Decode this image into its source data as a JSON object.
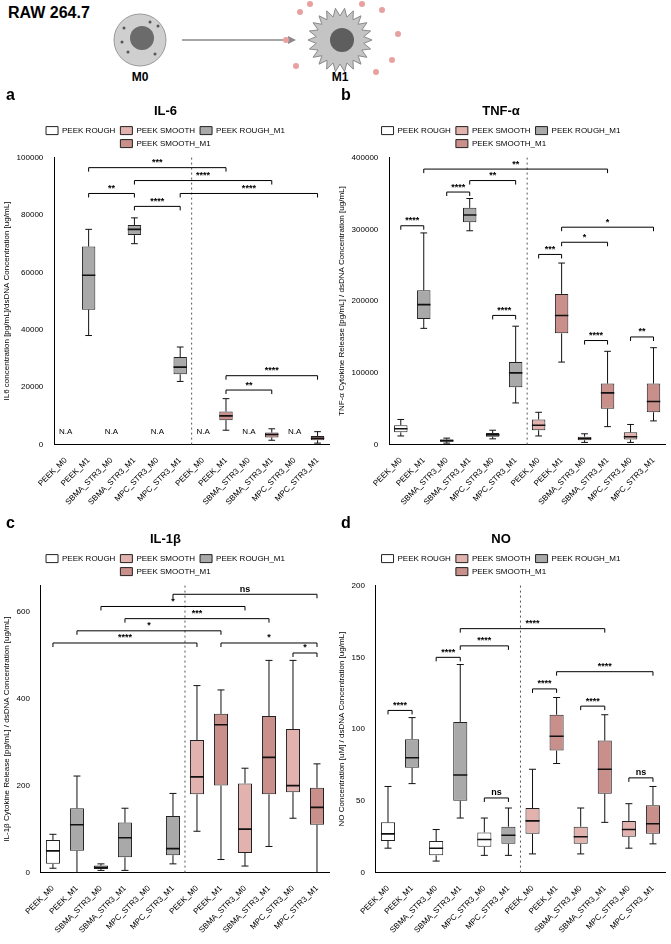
{
  "header": {
    "title": "RAW 264.7",
    "stages": [
      "M0",
      "M1"
    ]
  },
  "chart_data": [
    {
      "type": "box",
      "panel_label": "a",
      "title": "IL-6",
      "y_label": "IL6 concentration [pg/mL]/dsDNA Concentration [ug/mL]",
      "categories": [
        "PEEK_M0",
        "PEEK_M1",
        "SBMA_STR3_M0",
        "SBMA_STR3_M1",
        "MPC_STR3_M0",
        "MPC_STR3_M1",
        "PEEK_M0",
        "PEEK_M1",
        "SBMA_STR3_M0",
        "SBMA_STR3_M1",
        "MPC_STR3_M0",
        "MPC_STR3_M1"
      ],
      "ylim": [
        0,
        100000
      ],
      "yticks": [
        0,
        20000,
        40000,
        60000,
        80000,
        100000
      ],
      "grid": false,
      "legend": "top",
      "series": [
        {
          "name": "PEEK ROUGH",
          "color": "#ffffff",
          "values": [
            null,
            null,
            null,
            null,
            null,
            null,
            null,
            null,
            null,
            null,
            null,
            null
          ]
        },
        {
          "name": "PEEK SMOOTH",
          "color": "#e2b3ae",
          "values": [
            null,
            null,
            null,
            null,
            null,
            null,
            null,
            null,
            null,
            null,
            null,
            null
          ]
        },
        {
          "name": "PEEK ROUGH_M1",
          "color": "#a9a9a9",
          "values": [
            null,
            {
              "min": 38000,
              "q1": 47000,
              "median": 59000,
              "q3": 69000,
              "max": 75000
            },
            null,
            {
              "min": 70000,
              "q1": 73000,
              "median": 75000,
              "q3": 76500,
              "max": 79000
            },
            null,
            {
              "min": 22000,
              "q1": 24500,
              "median": 27000,
              "q3": 30500,
              "max": 34000
            },
            null,
            null,
            null,
            null,
            null,
            null
          ]
        },
        {
          "name": "PEEK SMOOTH_M1",
          "color": "#c98f8a",
          "values": [
            null,
            null,
            null,
            null,
            null,
            null,
            null,
            {
              "min": 5000,
              "q1": 8500,
              "median": 10000,
              "q3": 11500,
              "max": 16000
            },
            null,
            {
              "min": 1500,
              "q1": 2500,
              "median": 3500,
              "q3": 4200,
              "max": 5500
            },
            null,
            {
              "min": 500,
              "q1": 1500,
              "median": 2200,
              "q3": 3000,
              "max": 4500
            }
          ]
        }
      ],
      "annotations": [
        {
          "text": "N.A",
          "index": 0,
          "y": 3000
        },
        {
          "text": "N.A",
          "index": 2,
          "y": 3000
        },
        {
          "text": "N.A",
          "index": 4,
          "y": 3000
        },
        {
          "text": "N.A",
          "index": 6,
          "y": 3000
        },
        {
          "text": "N.A",
          "index": 8,
          "y": 3000
        },
        {
          "text": "N.A",
          "index": 10,
          "y": 3000
        }
      ],
      "brackets": [
        {
          "from": 1,
          "to": 7,
          "y": 96500,
          "label": "***"
        },
        {
          "from": 3,
          "to": 9,
          "y": 92000,
          "label": "****"
        },
        {
          "from": 1,
          "to": 3,
          "y": 87500,
          "label": "**"
        },
        {
          "from": 5,
          "to": 11,
          "y": 87500,
          "label": "****"
        },
        {
          "from": 3,
          "to": 5,
          "y": 83000,
          "label": "****"
        },
        {
          "from": 7,
          "to": 11,
          "y": 24000,
          "label": "****"
        },
        {
          "from": 7,
          "to": 9,
          "y": 19000,
          "label": "**"
        }
      ]
    },
    {
      "type": "box",
      "panel_label": "b",
      "title": "TNF-α",
      "y_label": "TNF-α Cytokine Release [pg/mL] / dsDNA Concentration [ug/mL]",
      "categories": [
        "PEEK_M0",
        "PEEK_M1",
        "SBMA_STR3_M0",
        "SBMA_STR3_M1",
        "MPC_STR3_M0",
        "MPC_STR3_M1",
        "PEEK_M0",
        "PEEK_M1",
        "SBMA_STR3_M0",
        "SBMA_STR3_M1",
        "MPC_STR3_M0",
        "MPC_STR3_M1"
      ],
      "ylim": [
        0,
        400000
      ],
      "yticks": [
        0,
        100000,
        200000,
        300000,
        400000
      ],
      "grid": false,
      "legend": "top",
      "series": [
        {
          "name": "PEEK ROUGH",
          "color": "#ffffff",
          "values": [
            {
              "min": 12000,
              "q1": 17000,
              "median": 22000,
              "q3": 27000,
              "max": 35000
            },
            null,
            {
              "min": 2000,
              "q1": 4000,
              "median": 5500,
              "q3": 7000,
              "max": 9000
            },
            null,
            {
              "min": 8000,
              "q1": 11000,
              "median": 13500,
              "q3": 16000,
              "max": 20000
            },
            null,
            null,
            null,
            null,
            null,
            null,
            null
          ]
        },
        {
          "name": "PEEK SMOOTH",
          "color": "#e2b3ae",
          "values": [
            null,
            null,
            null,
            null,
            null,
            null,
            {
              "min": 12000,
              "q1": 20000,
              "median": 27000,
              "q3": 35000,
              "max": 45000
            },
            null,
            {
              "min": 3000,
              "q1": 6000,
              "median": 8500,
              "q3": 11000,
              "max": 15000
            },
            null,
            {
              "min": 3000,
              "q1": 7000,
              "median": 11000,
              "q3": 17000,
              "max": 28000
            },
            null
          ]
        },
        {
          "name": "PEEK ROUGH_M1",
          "color": "#a9a9a9",
          "values": [
            null,
            {
              "min": 162000,
              "q1": 175000,
              "median": 195000,
              "q3": 215000,
              "max": 295000
            },
            null,
            {
              "min": 298000,
              "q1": 310000,
              "median": 320000,
              "q3": 330000,
              "max": 343000
            },
            null,
            {
              "min": 58000,
              "q1": 80000,
              "median": 100000,
              "q3": 115000,
              "max": 165000
            },
            null,
            null,
            null,
            null,
            null,
            null
          ]
        },
        {
          "name": "PEEK SMOOTH_M1",
          "color": "#c98f8a",
          "values": [
            null,
            null,
            null,
            null,
            null,
            null,
            null,
            {
              "min": 115000,
              "q1": 155000,
              "median": 180000,
              "q3": 210000,
              "max": 253000
            },
            null,
            {
              "min": 25000,
              "q1": 50000,
              "median": 72000,
              "q3": 85000,
              "max": 130000
            },
            null,
            {
              "min": 33000,
              "q1": 45000,
              "median": 60000,
              "q3": 85000,
              "max": 135000
            }
          ]
        }
      ],
      "brackets": [
        {
          "from": 1,
          "to": 9,
          "y": 384000,
          "label": "**"
        },
        {
          "from": 3,
          "to": 5,
          "y": 368000,
          "label": "**"
        },
        {
          "from": 2,
          "to": 3,
          "y": 352000,
          "label": "****"
        },
        {
          "from": 0,
          "to": 1,
          "y": 305000,
          "label": "****"
        },
        {
          "from": 7,
          "to": 11,
          "y": 303000,
          "label": "*"
        },
        {
          "from": 7,
          "to": 9,
          "y": 282000,
          "label": "*"
        },
        {
          "from": 6,
          "to": 7,
          "y": 265000,
          "label": "***"
        },
        {
          "from": 4,
          "to": 5,
          "y": 180000,
          "label": "****"
        },
        {
          "from": 8,
          "to": 9,
          "y": 145000,
          "label": "****"
        },
        {
          "from": 10,
          "to": 11,
          "y": 150000,
          "label": "**"
        }
      ]
    },
    {
      "type": "box",
      "panel_label": "c",
      "title": "IL-1β",
      "y_label": "IL-1β Cytokine Release [pg/mL] / dsDNA Concentration [ug/mL]",
      "categories": [
        "PEEK_M0",
        "PEEK_M1",
        "SBMA_STR3_M0",
        "SBMA_STR3_M1",
        "MPC_STR3_M0",
        "MPC_STR3_M1",
        "PEEK_M0",
        "PEEK_M1",
        "SBMA_STR3_M0",
        "SBMA_STR3_M1",
        "MPC_STR3_M0",
        "MPC_STR3_M1"
      ],
      "ylim": [
        0,
        660
      ],
      "yticks": [
        0,
        200,
        400,
        600
      ],
      "grid": false,
      "legend": "top",
      "series": [
        {
          "name": "PEEK ROUGH",
          "color": "#ffffff",
          "values": [
            {
              "min": 10,
              "q1": 20,
              "median": 50,
              "q3": 75,
              "max": 88
            },
            null,
            {
              "min": 5,
              "q1": 8,
              "median": 12,
              "q3": 16,
              "max": 20
            },
            null,
            null,
            null,
            null,
            null,
            null,
            null,
            null,
            null
          ]
        },
        {
          "name": "PEEK SMOOTH",
          "color": "#e2b3ae",
          "values": [
            null,
            null,
            null,
            null,
            null,
            null,
            {
              "min": 95,
              "q1": 180,
              "median": 220,
              "q3": 305,
              "max": 430
            },
            null,
            {
              "min": 15,
              "q1": 45,
              "median": 100,
              "q3": 205,
              "max": 240
            },
            null,
            {
              "min": 125,
              "q1": 185,
              "median": 200,
              "q3": 330,
              "max": 488
            },
            null
          ]
        },
        {
          "name": "PEEK ROUGH_M1",
          "color": "#a9a9a9",
          "values": [
            null,
            {
              "min": 0,
              "q1": 50,
              "median": 110,
              "q3": 148,
              "max": 222
            },
            null,
            {
              "min": 5,
              "q1": 35,
              "median": 80,
              "q3": 115,
              "max": 148
            },
            null,
            {
              "min": 20,
              "q1": 40,
              "median": 55,
              "q3": 130,
              "max": 182
            },
            null,
            null,
            null,
            null,
            null,
            null
          ]
        },
        {
          "name": "PEEK SMOOTH_M1",
          "color": "#c98f8a",
          "values": [
            null,
            null,
            null,
            null,
            null,
            null,
            null,
            {
              "min": 30,
              "q1": 200,
              "median": 340,
              "q3": 365,
              "max": 420
            },
            null,
            {
              "min": 60,
              "q1": 180,
              "median": 265,
              "q3": 360,
              "max": 488
            },
            null,
            {
              "min": 0,
              "q1": 110,
              "median": 150,
              "q3": 195,
              "max": 250
            }
          ]
        }
      ],
      "brackets": [
        {
          "from": 5,
          "to": 11,
          "y": 640,
          "label": "ns"
        },
        {
          "from": 2,
          "to": 8,
          "y": 612,
          "label": "*"
        },
        {
          "from": 3,
          "to": 9,
          "y": 584,
          "label": "***"
        },
        {
          "from": 1,
          "to": 7,
          "y": 556,
          "label": "*"
        },
        {
          "from": 0,
          "to": 6,
          "y": 528,
          "label": "****"
        },
        {
          "from": 7,
          "to": 11,
          "y": 528,
          "label": "*"
        },
        {
          "from": 10,
          "to": 11,
          "y": 505,
          "label": "*"
        }
      ]
    },
    {
      "type": "box",
      "panel_label": "d",
      "title": "NO",
      "y_label": "NO Concentration [uM] / dsDNA Concentration [ug/mL]",
      "categories": [
        "PEEK_M0",
        "PEEK_M1",
        "SBMA_STR3_M0",
        "SBMA_STR3_M1",
        "MPC_STR3_M0",
        "MPC_STR3_M1",
        "PEEK_M0",
        "PEEK_M1",
        "SBMA_STR3_M0",
        "SBMA_STR3_M1",
        "MPC_STR3_M0",
        "MPC_STR3_M1"
      ],
      "ylim": [
        0,
        200
      ],
      "yticks": [
        0,
        50,
        100,
        150,
        200
      ],
      "grid": false,
      "legend": "top",
      "series": [
        {
          "name": "PEEK ROUGH",
          "color": "#ffffff",
          "values": [
            {
              "min": 17,
              "q1": 22,
              "median": 27,
              "q3": 35,
              "max": 60
            },
            null,
            {
              "min": 8,
              "q1": 12,
              "median": 17,
              "q3": 22,
              "max": 30
            },
            null,
            {
              "min": 12,
              "q1": 18,
              "median": 23,
              "q3": 28,
              "max": 38
            },
            null,
            null,
            null,
            null,
            null,
            null,
            null
          ]
        },
        {
          "name": "PEEK SMOOTH",
          "color": "#e2b3ae",
          "values": [
            null,
            null,
            null,
            null,
            null,
            null,
            {
              "min": 13,
              "q1": 27,
              "median": 36,
              "q3": 45,
              "max": 72
            },
            null,
            {
              "min": 13,
              "q1": 20,
              "median": 25,
              "q3": 32,
              "max": 45
            },
            null,
            {
              "min": 17,
              "q1": 25,
              "median": 30,
              "q3": 36,
              "max": 48
            },
            null
          ]
        },
        {
          "name": "PEEK ROUGH_M1",
          "color": "#a9a9a9",
          "values": [
            null,
            {
              "min": 62,
              "q1": 73,
              "median": 80,
              "q3": 93,
              "max": 108
            },
            null,
            {
              "min": 38,
              "q1": 50,
              "median": 68,
              "q3": 105,
              "max": 145
            },
            null,
            {
              "min": 12,
              "q1": 20,
              "median": 26,
              "q3": 32,
              "max": 45
            },
            null,
            null,
            null,
            null,
            null,
            null
          ]
        },
        {
          "name": "PEEK SMOOTH_M1",
          "color": "#c98f8a",
          "values": [
            null,
            null,
            null,
            null,
            null,
            null,
            null,
            {
              "min": 76,
              "q1": 85,
              "median": 95,
              "q3": 110,
              "max": 122
            },
            null,
            {
              "min": 35,
              "q1": 55,
              "median": 72,
              "q3": 92,
              "max": 110
            },
            null,
            {
              "min": 20,
              "q1": 27,
              "median": 34,
              "q3": 47,
              "max": 60
            }
          ]
        }
      ],
      "brackets": [
        {
          "from": 3,
          "to": 9,
          "y": 170,
          "label": "****"
        },
        {
          "from": 3,
          "to": 5,
          "y": 158,
          "label": "****"
        },
        {
          "from": 2,
          "to": 3,
          "y": 150,
          "label": "****"
        },
        {
          "from": 7,
          "to": 11,
          "y": 140,
          "label": "****"
        },
        {
          "from": 6,
          "to": 7,
          "y": 128,
          "label": "****"
        },
        {
          "from": 8,
          "to": 9,
          "y": 116,
          "label": "****"
        },
        {
          "from": 0,
          "to": 1,
          "y": 113,
          "label": "****"
        },
        {
          "from": 10,
          "to": 11,
          "y": 66,
          "label": "ns"
        },
        {
          "from": 4,
          "to": 5,
          "y": 52,
          "label": "ns"
        }
      ]
    }
  ]
}
